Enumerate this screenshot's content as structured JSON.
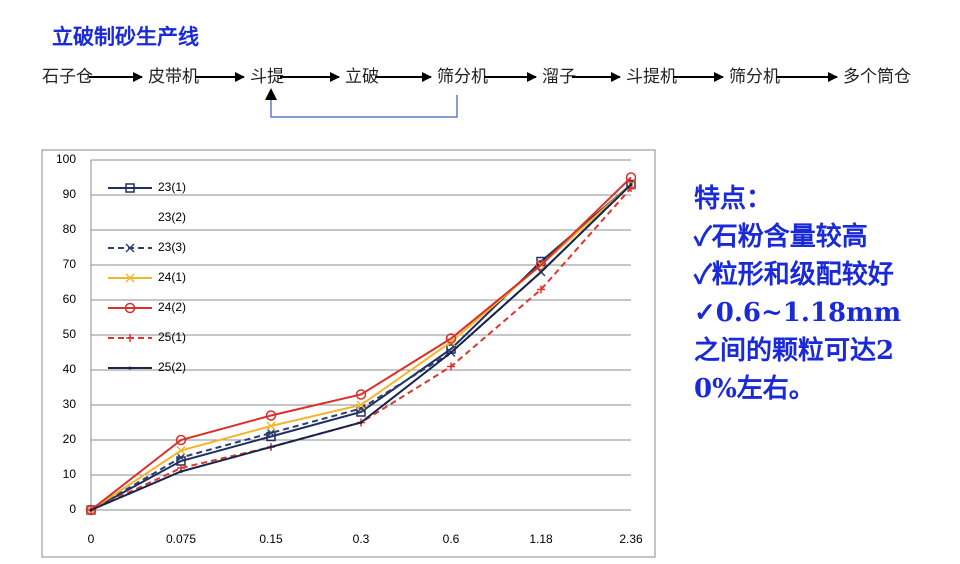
{
  "title": "立破制砂生产线",
  "flow": [
    "石子仓",
    "皮带机",
    "斗提",
    "立破",
    "筛分机",
    "溜子",
    "斗提机",
    "筛分机",
    "多个筒仓"
  ],
  "notes": {
    "heading": "特点：",
    "items": [
      "✓石粉含量较高",
      "✓粒形和级配较好",
      "✓0.6~1.18mm之间的颗粒可达20%左右。"
    ]
  },
  "chart_data": {
    "type": "line",
    "categories": [
      "0",
      "0.075",
      "0.15",
      "0.3",
      "0.6",
      "1.18",
      "2.36"
    ],
    "ylim": [
      0,
      100
    ],
    "yticks": [
      0,
      10,
      20,
      30,
      40,
      50,
      60,
      70,
      80,
      90,
      100
    ],
    "grid": true,
    "legend": "upper left",
    "series": [
      {
        "name": "23(1)",
        "color": "#1f2f5e",
        "marker": "square",
        "dash": false,
        "values": [
          0,
          14,
          21,
          28,
          46,
          71,
          93
        ]
      },
      {
        "name": "23(2)",
        "color": "none",
        "marker": "none",
        "dash": false,
        "values": [
          null,
          null,
          null,
          null,
          null,
          null,
          null
        ]
      },
      {
        "name": "23(3)",
        "color": "#2b3f73",
        "marker": "x",
        "dash": true,
        "values": [
          0,
          15,
          22,
          29,
          45,
          68,
          93
        ]
      },
      {
        "name": "24(1)",
        "color": "#f2b62c",
        "marker": "x",
        "dash": false,
        "values": [
          0,
          17,
          24,
          30,
          48,
          70,
          93
        ]
      },
      {
        "name": "24(2)",
        "color": "#d9302b",
        "marker": "circle",
        "dash": false,
        "values": [
          0,
          20,
          27,
          33,
          49,
          70,
          95
        ]
      },
      {
        "name": "25(1)",
        "color": "#e0342c",
        "marker": "plus",
        "dash": true,
        "values": [
          0,
          12,
          18,
          25,
          41,
          63,
          92
        ]
      },
      {
        "name": "25(2)",
        "color": "#17254f",
        "marker": "dot",
        "dash": false,
        "values": [
          0,
          11,
          18,
          25,
          45,
          68,
          93
        ]
      }
    ]
  }
}
